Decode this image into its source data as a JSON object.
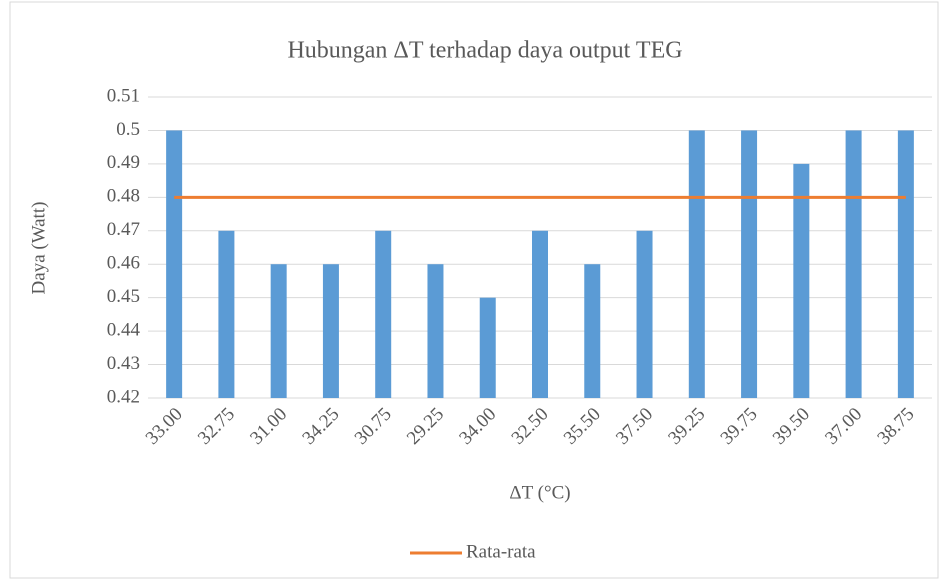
{
  "chart_data": {
    "type": "bar",
    "title": "Hubungan ΔT terhadap daya output TEG",
    "x_label": "ΔT (°C)",
    "y_label": "Daya (Watt)",
    "categories": [
      "33.00",
      "32.75",
      "31.00",
      "34.25",
      "30.75",
      "29.25",
      "34.00",
      "32.50",
      "35.50",
      "37.50",
      "39.25",
      "39.75",
      "39.50",
      "37.00",
      "38.75"
    ],
    "series": [
      {
        "type": "bar",
        "color": "#5b9bd5",
        "values": [
          0.5,
          0.47,
          0.46,
          0.46,
          0.47,
          0.46,
          0.45,
          0.47,
          0.46,
          0.47,
          0.5,
          0.5,
          0.49,
          0.5,
          0.5
        ]
      },
      {
        "type": "line",
        "name": "Rata-rata",
        "color": "#ed7d31",
        "values": [
          0.48,
          0.48,
          0.48,
          0.48,
          0.48,
          0.48,
          0.48,
          0.48,
          0.48,
          0.48,
          0.48,
          0.48,
          0.48,
          0.48,
          0.48
        ]
      }
    ],
    "ylim": [
      0.42,
      0.51
    ],
    "yticks": [
      0.42,
      0.43,
      0.44,
      0.45,
      0.46,
      0.47,
      0.48,
      0.49,
      0.5,
      0.51
    ],
    "grid": true,
    "legend": "bottom"
  }
}
